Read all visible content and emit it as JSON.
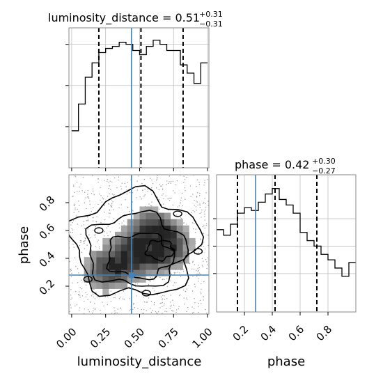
{
  "chart_data": {
    "type": "corner",
    "true_values": {
      "luminosity_distance": 0.44,
      "phase": 0.28
    },
    "axis_limits": {
      "luminosity_distance": [
        -0.02,
        1.01
      ],
      "phase": [
        0.0,
        1.0
      ]
    },
    "panels": [
      {
        "id": "hist_luminosity_distance",
        "type": "step-histogram",
        "parameter": "luminosity_distance",
        "title_prefix": "luminosity_distance = ",
        "title_value": "0.51",
        "title_plus": "+0.31",
        "title_minus": "−0.31",
        "bins": [
          0.0,
          0.05,
          0.1,
          0.15,
          0.2,
          0.25,
          0.3,
          0.35,
          0.4,
          0.45,
          0.5,
          0.55,
          0.6,
          0.65,
          0.7,
          0.75,
          0.8,
          0.85,
          0.9,
          0.95,
          1.0
        ],
        "counts": [
          18,
          31,
          44,
          51,
          56,
          58,
          59,
          61,
          60,
          57,
          55,
          59,
          62,
          60,
          57,
          57,
          50,
          46,
          41,
          51
        ],
        "ylim": [
          0,
          68
        ],
        "y_ticks": [
          20,
          40,
          60
        ],
        "quantile_lines": [
          0.2,
          0.51,
          0.82
        ],
        "x_ticks": [
          0.0,
          0.25,
          0.5,
          0.75,
          1.0
        ]
      },
      {
        "id": "hist_phase",
        "type": "step-histogram",
        "parameter": "phase",
        "title_prefix": "phase = ",
        "title_value": "0.42",
        "title_plus": "+0.30",
        "title_minus": "−0.27",
        "bins": [
          0.0,
          0.05,
          0.1,
          0.15,
          0.2,
          0.25,
          0.3,
          0.35,
          0.4,
          0.45,
          0.5,
          0.55,
          0.6,
          0.65,
          0.7,
          0.75,
          0.8,
          0.85,
          0.9,
          0.95,
          1.0
        ],
        "counts": [
          46,
          44,
          48,
          52,
          54,
          53,
          56,
          59,
          61,
          57,
          55,
          52,
          45,
          42,
          40,
          37,
          35,
          32,
          29,
          34
        ],
        "ylim": [
          16,
          66
        ],
        "y_ticks": [
          30,
          40,
          50
        ],
        "quantile_lines": [
          0.15,
          0.42,
          0.72
        ],
        "x_ticks": [
          0.2,
          0.4,
          0.6,
          0.8
        ]
      },
      {
        "id": "density_phase_vs_luminosity_distance",
        "type": "2d-density-contour",
        "x_parameter": "luminosity_distance",
        "y_parameter": "phase",
        "x_ticks": [
          0.0,
          0.25,
          0.5,
          0.75,
          1.0
        ],
        "y_ticks": [
          0.2,
          0.4,
          0.6,
          0.8
        ],
        "peak_regions": [
          {
            "x": 0.47,
            "y": 0.43,
            "density": 0.85
          },
          {
            "x": 0.68,
            "y": 0.48,
            "density": 0.9
          },
          {
            "x": 0.27,
            "y": 0.32,
            "density": 0.75
          },
          {
            "x": 0.6,
            "y": 0.62,
            "density": 0.6
          }
        ]
      }
    ],
    "xlabels": [
      "luminosity_distance",
      "phase"
    ],
    "ylabel": "phase",
    "x_tick_labels": [
      "0.00",
      "0.25",
      "0.50",
      "0.75",
      "1.00"
    ],
    "phase_tick_labels": [
      "0.2",
      "0.4",
      "0.6",
      "0.8"
    ],
    "colors": {
      "truth": "#4682b4",
      "hist": "#000000",
      "grid": "#bfbfbf",
      "frame": "#888888"
    }
  }
}
